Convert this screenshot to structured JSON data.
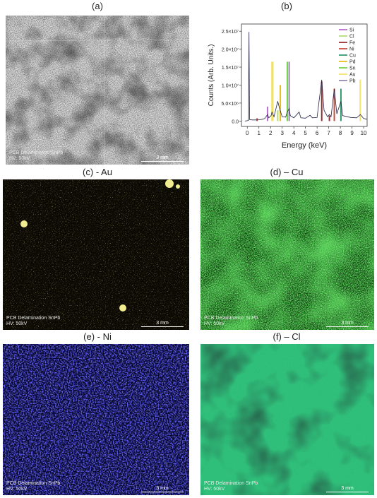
{
  "panels": {
    "a": {
      "label": "(a)",
      "caption1": "PCB Delamination SnPb",
      "caption2": "HV: 50kV",
      "scale": "3 mm"
    },
    "b": {
      "label": "(b)"
    },
    "c": {
      "label": "(c) - Au",
      "caption1": "PCB Delamination SnPb",
      "caption2": "HV: 50kV",
      "scale": "3 mm"
    },
    "d": {
      "label": "(d) – Cu",
      "caption1": "PCB Delamination SnPb",
      "caption2": "HV: 50kV",
      "scale": "3 mm"
    },
    "e": {
      "label": "(e) - Ni",
      "caption1": "PCB Delamination SnPb",
      "caption2": "HV: 50kV",
      "scale": "3 mm"
    },
    "f": {
      "label": "(f) – Cl",
      "caption1": "PCB Delamination SnPb",
      "caption2": "HV: 50kV",
      "scale": "3 mm"
    }
  },
  "colors": {
    "au": "#f0e060",
    "cu": "#33cc33",
    "ni": "#2a2aff",
    "cl": "#2fbf7a"
  },
  "chart_data": {
    "type": "line",
    "xlabel": "Energy (keV)",
    "ylabel": "Counts (Arb. Units.)",
    "xlim": [
      -0.5,
      10.3
    ],
    "ylim": [
      -1500000,
      27000000
    ],
    "xticks": [
      0,
      1,
      2,
      3,
      4,
      5,
      6,
      7,
      8,
      9,
      10
    ],
    "yticks": [
      {
        "value": 0,
        "label": "0.0"
      },
      {
        "value": 5000000,
        "label": "5.0×10⁶"
      },
      {
        "value": 10000000,
        "label": "1.0×10⁷"
      },
      {
        "value": 15000000,
        "label": "1.5×10⁷"
      },
      {
        "value": 20000000,
        "label": "2.0×10⁷"
      },
      {
        "value": 25000000,
        "label": "2.5×10⁷"
      }
    ],
    "legend": [
      {
        "name": "Si",
        "color": "#b05cc8"
      },
      {
        "name": "Cl",
        "color": "#a8d86a"
      },
      {
        "name": "Fe",
        "color": "#8b1a1a"
      },
      {
        "name": "Ni",
        "color": "#c0392b"
      },
      {
        "name": "Cu",
        "color": "#1e8e5a"
      },
      {
        "name": "Pd",
        "color": "#e6b800"
      },
      {
        "name": "Sn",
        "color": "#66cc33"
      },
      {
        "name": "Au",
        "color": "#f0e060"
      },
      {
        "name": "Pb",
        "color": "#8a7aa0"
      }
    ],
    "element_lines": [
      {
        "name": "Si",
        "x": 1.74,
        "y": 4000000
      },
      {
        "name": "Pd",
        "x": 2.84,
        "y": 10000000
      },
      {
        "name": "Cl",
        "x": 2.62,
        "y": 3000000
      },
      {
        "name": "Sn",
        "x": 3.44,
        "y": 16500000
      },
      {
        "name": "Pb",
        "x": 3.6,
        "y": 16500000
      },
      {
        "name": "Au",
        "x": 2.12,
        "y": 16500000
      },
      {
        "name": "Au",
        "x": 2.2,
        "y": 16500000
      },
      {
        "name": "Fe",
        "x": 6.4,
        "y": 11000000
      },
      {
        "name": "Ni",
        "x": 7.48,
        "y": 9000000
      },
      {
        "name": "Cu",
        "x": 8.05,
        "y": 9000000
      },
      {
        "name": "Au",
        "x": 9.71,
        "y": 11500000
      },
      {
        "name": "Fe",
        "x": 7.06,
        "y": 1500000
      },
      {
        "name": "Ni",
        "x": 0.85,
        "y": 800000
      }
    ],
    "spectrum": [
      [
        -0.2,
        0
      ],
      [
        0.0,
        100000
      ],
      [
        0.1,
        200000
      ],
      [
        0.15,
        24800000
      ],
      [
        0.2,
        400000
      ],
      [
        0.4,
        300000
      ],
      [
        0.8,
        300000
      ],
      [
        1.0,
        350000
      ],
      [
        1.3,
        500000
      ],
      [
        1.5,
        700000
      ],
      [
        1.74,
        1800000
      ],
      [
        1.85,
        900000
      ],
      [
        2.05,
        1500000
      ],
      [
        2.12,
        2500000
      ],
      [
        2.3,
        1200000
      ],
      [
        2.62,
        5500000
      ],
      [
        2.8,
        3200000
      ],
      [
        3.0,
        1200000
      ],
      [
        3.3,
        1100000
      ],
      [
        3.44,
        2500000
      ],
      [
        3.6,
        3500000
      ],
      [
        3.7,
        1500000
      ],
      [
        4.0,
        900000
      ],
      [
        4.46,
        2500000
      ],
      [
        4.6,
        900000
      ],
      [
        5.0,
        800000
      ],
      [
        5.4,
        1600000
      ],
      [
        5.6,
        900000
      ],
      [
        6.0,
        1000000
      ],
      [
        6.4,
        11500000
      ],
      [
        6.6,
        3000000
      ],
      [
        6.9,
        1200000
      ],
      [
        7.06,
        1800000
      ],
      [
        7.2,
        1200000
      ],
      [
        7.48,
        9000000
      ],
      [
        7.7,
        2000000
      ],
      [
        8.05,
        5500000
      ],
      [
        8.2,
        1500000
      ],
      [
        8.9,
        1000000
      ],
      [
        9.4,
        900000
      ],
      [
        9.71,
        1800000
      ],
      [
        10.0,
        700000
      ],
      [
        10.3,
        500000
      ]
    ]
  }
}
